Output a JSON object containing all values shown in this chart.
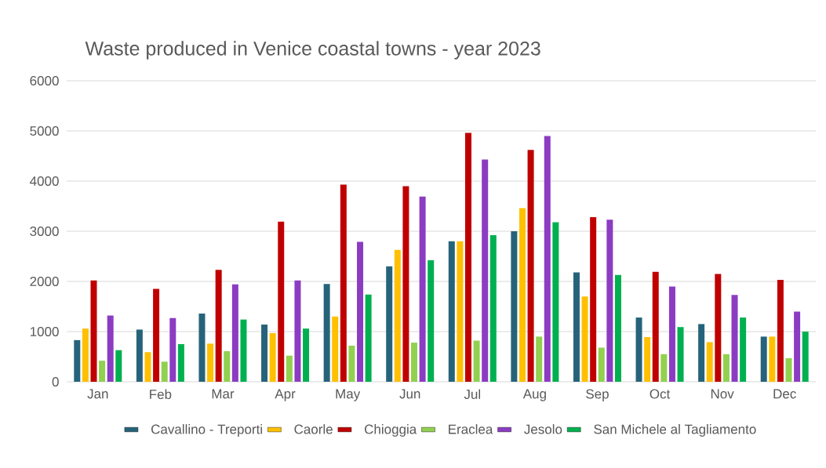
{
  "chart_data": {
    "type": "bar",
    "title": "Waste produced in Venice coastal towns - year 2023",
    "categories": [
      "Jan",
      "Feb",
      "Mar",
      "Apr",
      "May",
      "Jun",
      "Jul",
      "Aug",
      "Sep",
      "Oct",
      "Nov",
      "Dec"
    ],
    "series": [
      {
        "name": "Cavallino - Treporti",
        "color": "#26637a",
        "values": [
          830,
          1040,
          1360,
          1140,
          1950,
          2300,
          2800,
          3000,
          2180,
          1280,
          1150,
          900
        ]
      },
      {
        "name": "Caorle",
        "color": "#ffc000",
        "values": [
          1060,
          590,
          760,
          970,
          1300,
          2630,
          2800,
          3460,
          1700,
          890,
          790,
          900
        ]
      },
      {
        "name": "Chioggia",
        "color": "#c00000",
        "values": [
          2020,
          1850,
          2230,
          3190,
          3930,
          3900,
          4960,
          4620,
          3280,
          2190,
          2150,
          2030
        ]
      },
      {
        "name": "Eraclea",
        "color": "#92d050",
        "values": [
          420,
          400,
          610,
          520,
          720,
          780,
          820,
          900,
          680,
          550,
          550,
          470
        ]
      },
      {
        "name": "Jesolo",
        "color": "#8b3cc2",
        "values": [
          1320,
          1270,
          1940,
          2020,
          2790,
          3690,
          4430,
          4900,
          3230,
          1900,
          1730,
          1400
        ]
      },
      {
        "name": "San Michele al Tagliamento",
        "color": "#00b050",
        "values": [
          630,
          750,
          1240,
          1060,
          1740,
          2420,
          2920,
          3180,
          2130,
          1090,
          1280,
          1000
        ]
      }
    ],
    "ylim": [
      0,
      6000
    ],
    "yticks": [
      0,
      1000,
      2000,
      3000,
      4000,
      5000,
      6000
    ],
    "grid": "y",
    "legend": "bottom"
  }
}
